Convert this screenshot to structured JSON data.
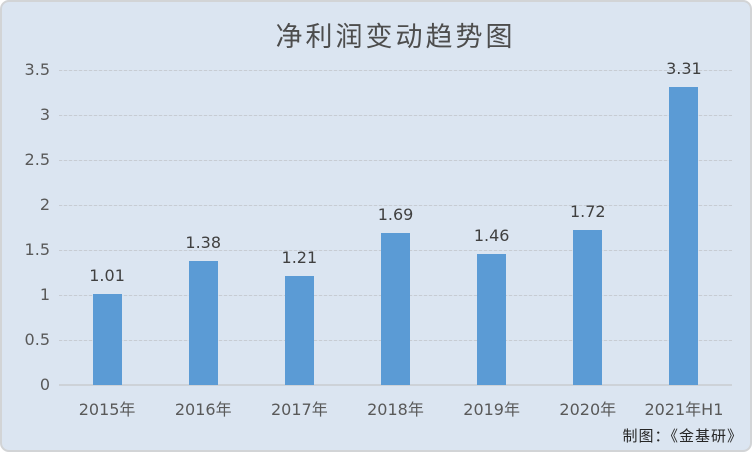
{
  "window": {
    "background_color": "#dbe5f1",
    "border_color": "#d2d4d6"
  },
  "chart_data": {
    "type": "bar",
    "title": "净利润变动趋势图",
    "categories": [
      "2015年",
      "2016年",
      "2017年",
      "2018年",
      "2019年",
      "2020年",
      "2021年H1"
    ],
    "values": [
      1.01,
      1.38,
      1.21,
      1.69,
      1.46,
      1.72,
      3.31
    ],
    "value_labels": [
      "1.01",
      "1.38",
      "1.21",
      "1.69",
      "1.46",
      "1.72",
      "3.31"
    ],
    "xlabel": "",
    "ylabel": "",
    "ylim": [
      0,
      3.5
    ],
    "ytick_step": 0.5,
    "ytick_labels": [
      "0",
      "0.5",
      "1",
      "1.5",
      "2",
      "2.5",
      "3",
      "3.5"
    ],
    "grid": "horizontal",
    "legend": "none",
    "bar_color": "#5b9bd5",
    "gridline_color": "#c7ccd3",
    "label_color": "#404040",
    "axis_text_color": "#595959"
  },
  "footer": {
    "credit": "制图：《金基研》"
  }
}
